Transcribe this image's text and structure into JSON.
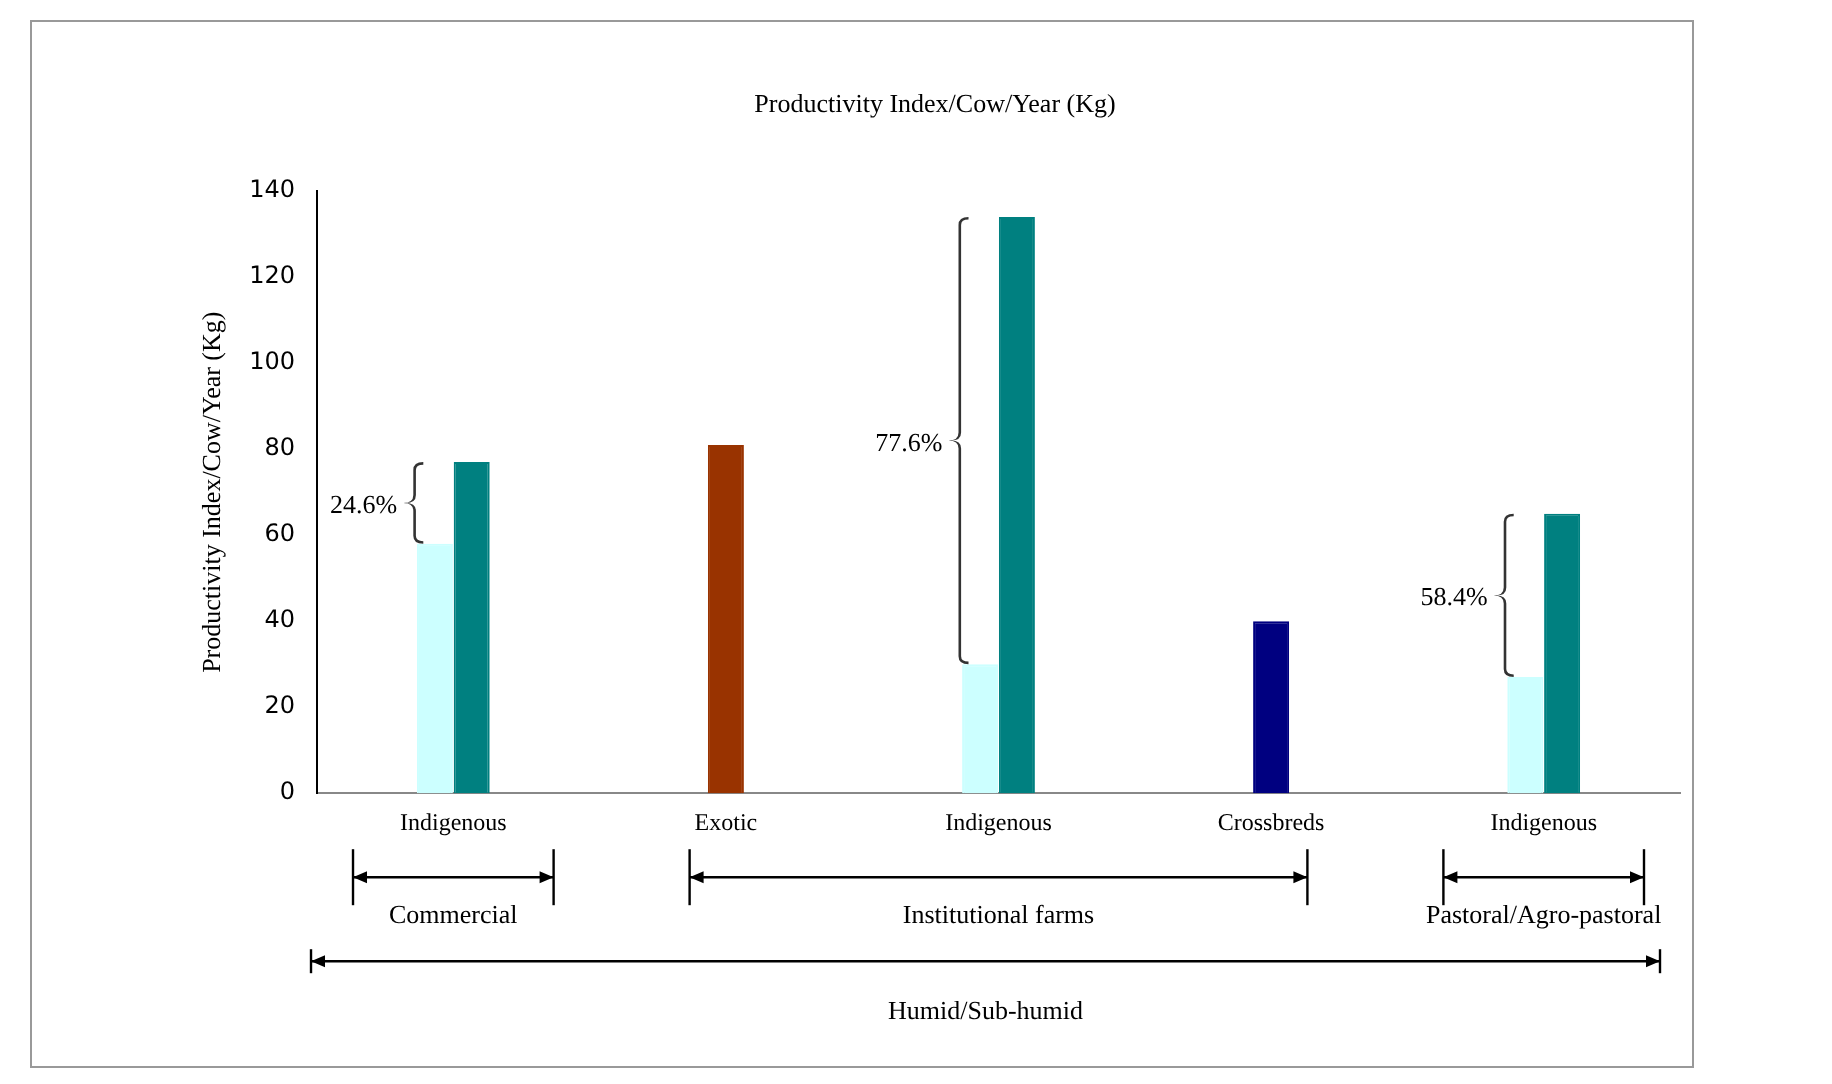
{
  "chart_data": {
    "type": "bar",
    "title": "Productivity Index/Cow/Year (Kg)",
    "ylabel": "Productivity Index/Cow/Year (Kg)",
    "categories": [
      "Indigenous",
      "Exotic",
      "Indigenous",
      "Crossbreds",
      "Indigenous"
    ],
    "series": [
      {
        "color": "#ccffff",
        "values": [
          58,
          null,
          30,
          null,
          27
        ]
      },
      {
        "color": "#008080",
        "values": [
          77,
          null,
          134,
          null,
          65
        ]
      },
      {
        "color": "#993300",
        "values": [
          null,
          81,
          null,
          null,
          null
        ]
      },
      {
        "color": "#000080",
        "values": [
          null,
          null,
          null,
          40,
          null
        ]
      }
    ],
    "ylim": [
      0,
      140
    ],
    "yticks": [
      0,
      20,
      40,
      60,
      80,
      100,
      120,
      140
    ],
    "grid": false,
    "legend": false,
    "annotations": [
      "24.6%",
      "77.6%",
      "58.4%",
      "Commercial",
      "Institutional farms",
      "Pastoral/Agro-pastoral",
      "Humid/Sub-humid"
    ]
  }
}
